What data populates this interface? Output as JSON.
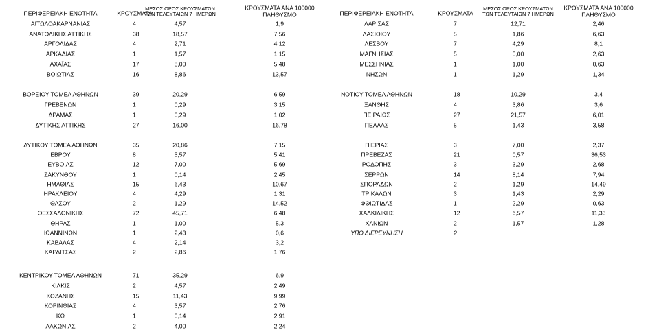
{
  "tables": [
    {
      "headers": {
        "region": "ΠΕΡΙΦΕΡΕΙΑΚΗ ΕΝΟΤΗΤΑ",
        "cases": "ΚΡΟΥΣΜΑΤΑ",
        "avg7": [
          "ΜΕΣΟΣ ΟΡΟΣ ΚΡΟΥΣΜΑΤΩΝ",
          "ΤΩΝ ΤΕΛΕΥΤΑΙΩΝ 7 ΗΜΕΡΩΝ"
        ],
        "per100k": [
          "ΚΡΟΥΣΜΑΤΑ ΑΝΑ 100000",
          "ΠΛΗΘΥΣΜΟ"
        ]
      },
      "groups": [
        [
          [
            "ΑΙΤΩΛΟΑΚΑΡΝΑΝΙΑΣ",
            4,
            "4,57",
            "1,9"
          ],
          [
            "ΑΝΑΤΟΛΙΚΗΣ ΑΤΤΙΚΗΣ",
            38,
            "18,57",
            "7,56"
          ],
          [
            "ΑΡΓΟΛΙΔΑΣ",
            4,
            "2,71",
            "4,12"
          ],
          [
            "ΑΡΚΑΔΙΑΣ",
            1,
            "1,57",
            "1,15"
          ],
          [
            "ΑΧΑΪΑΣ",
            17,
            "8,00",
            "5,48"
          ],
          [
            "ΒΟΙΩΤΙΑΣ",
            16,
            "8,86",
            "13,57"
          ]
        ],
        [
          [
            "ΒΟΡΕΙΟΥ ΤΟΜΕΑ ΑΘΗΝΩΝ",
            39,
            "20,29",
            "6,59"
          ],
          [
            "ΓΡΕΒΕΝΩΝ",
            1,
            "0,29",
            "3,15"
          ],
          [
            "ΔΡΑΜΑΣ",
            1,
            "0,29",
            "1,02"
          ],
          [
            "ΔΥΤΙΚΗΣ ΑΤΤΙΚΗΣ",
            27,
            "16,00",
            "16,78"
          ]
        ],
        [
          [
            "ΔΥΤΙΚΟΥ ΤΟΜΕΑ ΑΘΗΝΩΝ",
            35,
            "20,86",
            "7,15"
          ],
          [
            "ΕΒΡΟΥ",
            8,
            "5,57",
            "5,41"
          ],
          [
            "ΕΥΒΟΙΑΣ",
            12,
            "7,00",
            "5,69"
          ],
          [
            "ΖΑΚΥΝΘΟΥ",
            1,
            "0,14",
            "2,45"
          ],
          [
            "ΗΜΑΘΙΑΣ",
            15,
            "6,43",
            "10,67"
          ],
          [
            "ΗΡΑΚΛΕΙΟΥ",
            4,
            "4,29",
            "1,31"
          ],
          [
            "ΘΑΣΟΥ",
            2,
            "1,29",
            "14,52"
          ],
          [
            "ΘΕΣΣΑΛΟΝΙΚΗΣ",
            72,
            "45,71",
            "6,48"
          ],
          [
            "ΘΗΡΑΣ",
            1,
            "1,00",
            "5,3"
          ],
          [
            "ΙΩΑΝΝΙΝΩΝ",
            1,
            "2,43",
            "0,6"
          ],
          [
            "ΚΑΒΑΛΑΣ",
            4,
            "2,14",
            "3,2"
          ],
          [
            "ΚΑΡΔΙΤΣΑΣ",
            2,
            "2,86",
            "1,76"
          ]
        ],
        [
          [
            "ΚΕΝΤΡΙΚΟΥ ΤΟΜΕΑ ΑΘΗΝΩΝ",
            71,
            "35,29",
            "6,9"
          ],
          [
            "ΚΙΛΚΙΣ",
            2,
            "4,57",
            "2,49"
          ],
          [
            "ΚΟΖΑΝΗΣ",
            15,
            "11,43",
            "9,99"
          ],
          [
            "ΚΟΡΙΝΘΙΑΣ",
            4,
            "3,57",
            "2,76"
          ],
          [
            "ΚΩ",
            1,
            "0,14",
            "2,91"
          ],
          [
            "ΛΑΚΩΝΙΑΣ",
            2,
            "4,00",
            "2,24"
          ]
        ]
      ]
    },
    {
      "headers": {
        "region": "ΠΕΡΙΦΕΡΕΙΑΚΗ ΕΝΟΤΗΤΑ",
        "cases": "ΚΡΟΥΣΜΑΤΑ",
        "avg7": [
          "ΜΕΣΟΣ ΟΡΟΣ ΚΡΟΥΣΜΑΤΩΝ",
          "ΤΩΝ ΤΕΛΕΥΤΑΙΩΝ 7 ΗΜΕΡΩΝ"
        ],
        "per100k": [
          "ΚΡΟΥΣΜΑΤΑ ΑΝΑ 100000",
          "ΠΛΗΘΥΣΜΟ"
        ]
      },
      "groups": [
        [
          [
            "ΛΑΡΙΣΑΣ",
            7,
            "12,71",
            "2,46"
          ],
          [
            "ΛΑΣΙΘΙΟΥ",
            5,
            "1,86",
            "6,63"
          ],
          [
            "ΛΕΣΒΟΥ",
            7,
            "4,29",
            "8,1"
          ],
          [
            "ΜΑΓΝΗΣΙΑΣ",
            5,
            "5,00",
            "2,63"
          ],
          [
            "ΜΕΣΣΗΝΙΑΣ",
            1,
            "1,00",
            "0,63"
          ],
          [
            "ΝΗΣΩΝ",
            1,
            "1,29",
            "1,34"
          ]
        ],
        [
          [
            "ΝΟΤΙΟΥ ΤΟΜΕΑ ΑΘΗΝΩΝ",
            18,
            "10,29",
            "3,4"
          ],
          [
            "ΞΑΝΘΗΣ",
            4,
            "3,86",
            "3,6"
          ],
          [
            "ΠΕΙΡΑΙΩΣ",
            27,
            "21,57",
            "6,01"
          ],
          [
            "ΠΕΛΛΑΣ",
            5,
            "1,43",
            "3,58"
          ]
        ],
        [
          [
            "ΠΙΕΡΙΑΣ",
            3,
            "7,00",
            "2,37"
          ],
          [
            "ΠΡΕΒΕΖΑΣ",
            21,
            "0,57",
            "36,53"
          ],
          [
            "ΡΟΔΟΠΗΣ",
            3,
            "3,29",
            "2,68"
          ],
          [
            "ΣΕΡΡΩΝ",
            14,
            "8,14",
            "7,94"
          ],
          [
            "ΣΠΟΡΑΔΩΝ",
            2,
            "1,29",
            "14,49"
          ],
          [
            "ΤΡΙΚΑΛΩΝ",
            3,
            "1,43",
            "2,29"
          ],
          [
            "ΦΘΙΩΤΙΔΑΣ",
            1,
            "2,29",
            "0,63"
          ],
          [
            "ΧΑΛΚΙΔΙΚΗΣ",
            12,
            "6,57",
            "11,33"
          ],
          [
            "ΧΑΝΙΩΝ",
            2,
            "1,57",
            "1,28"
          ]
        ]
      ],
      "unassigned": {
        "label": "ΥΠΟ ΔΙΕΡΕΥΝΗΣΗ",
        "cases": 2
      }
    }
  ]
}
